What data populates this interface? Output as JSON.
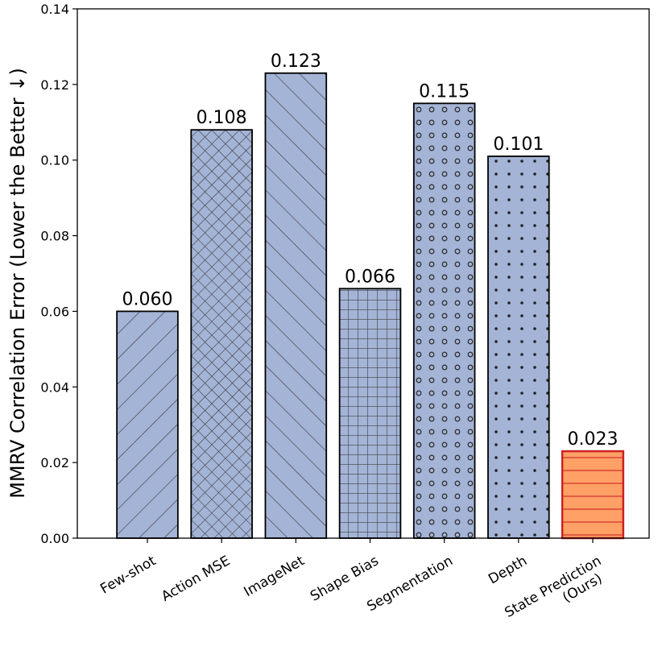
{
  "chart_data": {
    "type": "bar",
    "title": "",
    "xlabel": "",
    "ylabel": "MMRV Correlation Error (Lower the Better ↓)",
    "ylim": [
      0,
      0.14
    ],
    "yticks": [
      "0.00",
      "0.02",
      "0.04",
      "0.06",
      "0.08",
      "0.10",
      "0.12",
      "0.14"
    ],
    "categories": [
      "Few-shot",
      "Action MSE",
      "ImageNet",
      "Shape Bias",
      "Segmentation",
      "Depth",
      "State Prediction\n(Ours)"
    ],
    "values": [
      0.06,
      0.108,
      0.123,
      0.066,
      0.115,
      0.101,
      0.023
    ],
    "value_labels": [
      "0.060",
      "0.108",
      "0.123",
      "0.066",
      "0.115",
      "0.101",
      "0.023"
    ],
    "patterns": [
      "diag-forward",
      "crosshatch",
      "diag-back",
      "grid",
      "circles",
      "dots",
      "horizontal"
    ],
    "colors": {
      "bar_default": "#a4b4d6",
      "bar_highlight": "#ffa066",
      "edge_default": "#000000",
      "edge_highlight": "#cc2222"
    },
    "grid": false,
    "legend": "none"
  }
}
